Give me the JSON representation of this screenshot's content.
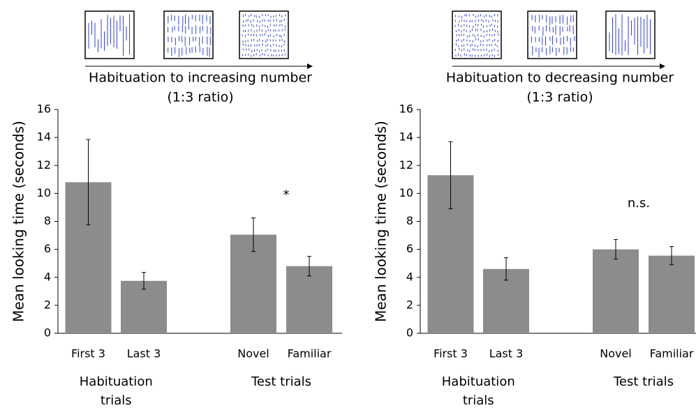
{
  "chart_data": [
    {
      "type": "bar",
      "title": "Habituation to increasing number",
      "subtitle": "(1:3 ratio)",
      "y_label": "Mean looking time (seconds)",
      "color": "#8c8c8c",
      "ylim": [
        0,
        16
      ],
      "yticks": [
        0,
        2,
        4,
        6,
        8,
        10,
        12,
        14,
        16
      ],
      "groups": [
        {
          "name": "Habituation trials",
          "categories": [
            "First 3",
            "Last 3"
          ],
          "values": [
            10.8,
            3.75
          ],
          "errors": [
            3.05,
            0.6
          ]
        },
        {
          "name": "Test trials",
          "categories": [
            "Novel",
            "Familiar"
          ],
          "values": [
            7.05,
            4.8
          ],
          "errors": [
            1.2,
            0.7
          ]
        }
      ],
      "annotation": "*"
    },
    {
      "type": "bar",
      "title": "Habituation to decreasing number",
      "subtitle": "(1:3 ratio)",
      "y_label": "Mean looking time (seconds)",
      "color": "#8c8c8c",
      "ylim": [
        0,
        16
      ],
      "yticks": [
        0,
        2,
        4,
        6,
        8,
        10,
        12,
        14,
        16
      ],
      "groups": [
        {
          "name": "Habituation trials",
          "categories": [
            "First 3",
            "Last 3"
          ],
          "values": [
            11.3,
            4.6
          ],
          "errors": [
            2.4,
            0.8
          ]
        },
        {
          "name": "Test trials",
          "categories": [
            "Novel",
            "Familiar"
          ],
          "values": [
            6.0,
            5.55
          ],
          "errors": [
            0.7,
            0.65
          ]
        }
      ],
      "annotation": "n.s."
    }
  ]
}
